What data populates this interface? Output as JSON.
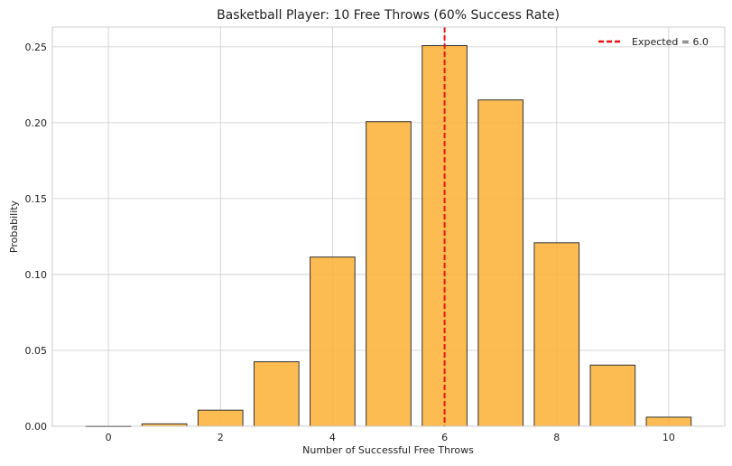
{
  "chart_data": {
    "type": "bar",
    "title": "Basketball Player: 10 Free Throws (60% Success Rate)",
    "xlabel": "Number of Successful Free Throws",
    "ylabel": "Probability",
    "x": [
      0,
      1,
      2,
      3,
      4,
      5,
      6,
      7,
      8,
      9,
      10
    ],
    "values": [
      0.0001,
      0.0016,
      0.0106,
      0.0425,
      0.1115,
      0.2007,
      0.2508,
      0.215,
      0.1209,
      0.0403,
      0.006
    ],
    "xlim": [
      -1.0,
      11.0
    ],
    "ylim": [
      0,
      0.263
    ],
    "xticks": [
      0,
      2,
      4,
      6,
      8,
      10
    ],
    "xtick_labels": [
      "0",
      "2",
      "4",
      "6",
      "8",
      "10"
    ],
    "yticks": [
      0.0,
      0.05,
      0.1,
      0.15,
      0.2,
      0.25
    ],
    "ytick_labels": [
      "0.00",
      "0.05",
      "0.10",
      "0.15",
      "0.20",
      "0.25"
    ],
    "bar_color": "#fbb034",
    "bar_edge_color": "#333333",
    "expected": {
      "value": 6.0,
      "label": "Expected = 6.0",
      "color": "#ee1111",
      "style": "dashed"
    },
    "grid": true,
    "legend_position": "top-right"
  }
}
